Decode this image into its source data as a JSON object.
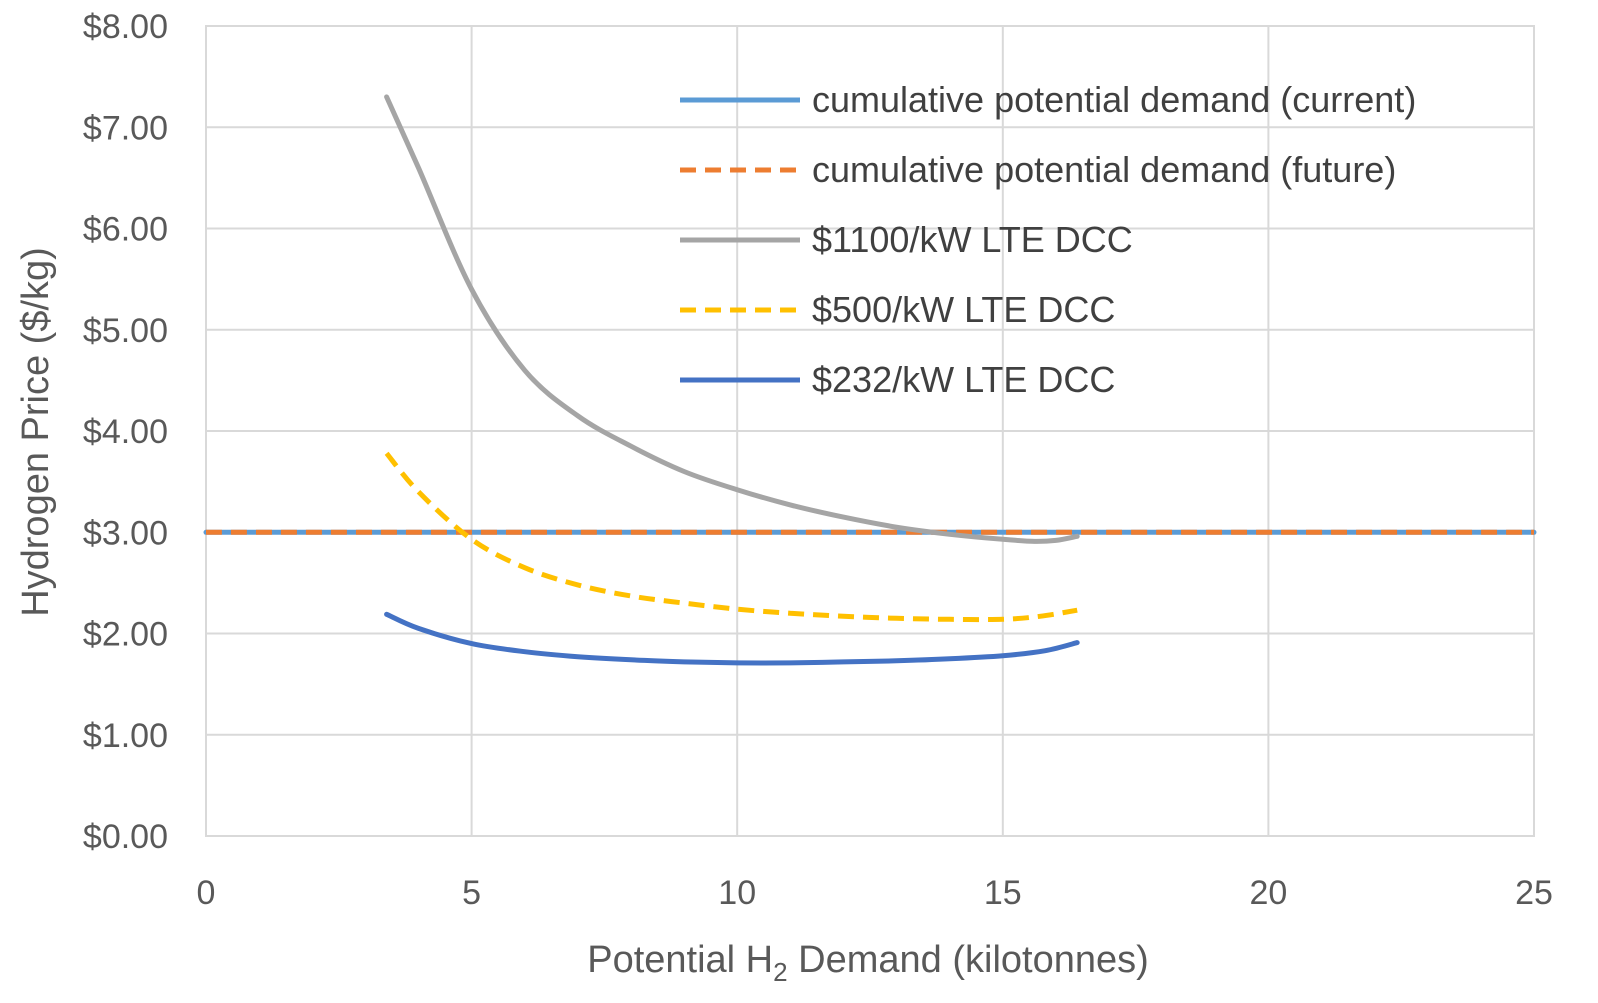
{
  "chart_data": {
    "type": "line",
    "title": "",
    "xlabel": {
      "prefix": "Potential H",
      "subscript": "2",
      "suffix": " Demand (kilotonnes)"
    },
    "ylabel": "Hydrogen Price ($/kg)",
    "xlim": [
      0,
      25
    ],
    "ylim": [
      0,
      8
    ],
    "xticks": [
      0,
      5,
      10,
      15,
      20,
      25
    ],
    "xtick_labels": [
      "0",
      "5",
      "10",
      "15",
      "20",
      "25"
    ],
    "yticks": [
      0,
      1,
      2,
      3,
      4,
      5,
      6,
      7,
      8
    ],
    "ytick_labels": [
      "$0.00",
      "$1.00",
      "$2.00",
      "$3.00",
      "$4.00",
      "$5.00",
      "$6.00",
      "$7.00",
      "$8.00"
    ],
    "grid": true,
    "legend_position": "top-right",
    "series": [
      {
        "name": "cumulative potential demand (current)",
        "color": "#5B9BD5",
        "dash": "solid",
        "x": [
          0,
          25
        ],
        "y": [
          3.0,
          3.0
        ]
      },
      {
        "name": "cumulative potential demand (future)",
        "color": "#ED7D31",
        "dash": "dashed",
        "x": [
          0,
          25
        ],
        "y": [
          3.0,
          3.0
        ]
      },
      {
        "name": "$1100/kW LTE DCC",
        "color": "#A5A5A5",
        "dash": "solid",
        "x": [
          3.4,
          4.0,
          5.0,
          6.0,
          7.0,
          8.0,
          9.0,
          10.0,
          11.0,
          12.0,
          13.0,
          14.0,
          15.0,
          15.6,
          16.0,
          16.4
        ],
        "y": [
          7.3,
          6.6,
          5.4,
          4.6,
          4.15,
          3.85,
          3.6,
          3.42,
          3.27,
          3.15,
          3.05,
          2.98,
          2.93,
          2.91,
          2.92,
          2.96
        ]
      },
      {
        "name": "$500/kW LTE DCC",
        "color": "#FFC000",
        "dash": "dashed",
        "x": [
          3.4,
          4.0,
          5.0,
          6.0,
          7.0,
          8.0,
          9.0,
          10.0,
          11.0,
          12.0,
          13.0,
          14.0,
          15.0,
          15.7,
          16.4
        ],
        "y": [
          3.78,
          3.4,
          2.93,
          2.65,
          2.48,
          2.37,
          2.3,
          2.24,
          2.2,
          2.17,
          2.15,
          2.14,
          2.14,
          2.17,
          2.23
        ]
      },
      {
        "name": "$232/kW LTE DCC",
        "color": "#4472C4",
        "dash": "solid",
        "x": [
          3.4,
          4.0,
          5.0,
          6.0,
          7.0,
          8.0,
          9.0,
          10.0,
          11.0,
          12.0,
          13.0,
          14.0,
          15.0,
          15.8,
          16.4
        ],
        "y": [
          2.19,
          2.05,
          1.9,
          1.82,
          1.77,
          1.74,
          1.72,
          1.71,
          1.71,
          1.72,
          1.73,
          1.75,
          1.78,
          1.83,
          1.91
        ]
      }
    ]
  }
}
